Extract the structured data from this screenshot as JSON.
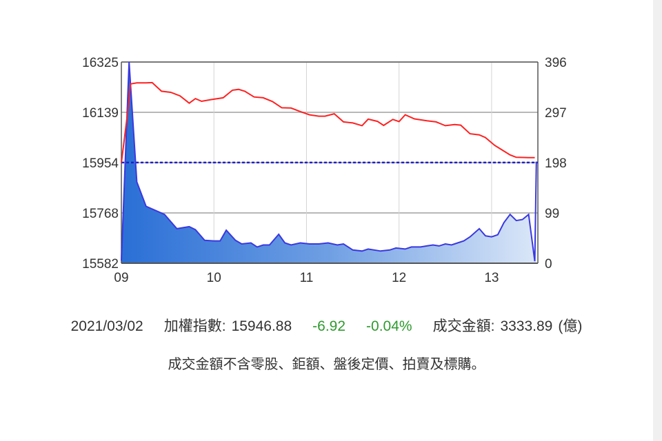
{
  "chart_data": {
    "type": "line",
    "x_ticks": [
      {
        "t": 0,
        "label": "09"
      },
      {
        "t": 60,
        "label": "10"
      },
      {
        "t": 120,
        "label": "11"
      },
      {
        "t": 180,
        "label": "12"
      },
      {
        "t": 240,
        "label": "13"
      }
    ],
    "x_range": [
      0,
      270
    ],
    "y_left": {
      "range": [
        15582,
        16325
      ],
      "ticks": [
        "16325",
        "16139",
        "15954",
        "15768",
        "15582"
      ]
    },
    "y_right": {
      "range": [
        0,
        396
      ],
      "ticks": [
        "396",
        "297",
        "198",
        "99",
        "0"
      ]
    },
    "reference_line": {
      "value": 15953.8,
      "axis": "left",
      "style": "dashed",
      "color": "#1f1fc8"
    },
    "series": [
      {
        "axis": "left",
        "type": "line",
        "color": "#ff2020",
        "points": [
          [
            0,
            15953
          ],
          [
            4,
            16134
          ],
          [
            6,
            16244
          ],
          [
            10,
            16248
          ],
          [
            16,
            16248
          ],
          [
            20,
            16249
          ],
          [
            26,
            16217
          ],
          [
            32,
            16213
          ],
          [
            38,
            16200
          ],
          [
            44,
            16173
          ],
          [
            48,
            16190
          ],
          [
            52,
            16180
          ],
          [
            58,
            16186
          ],
          [
            66,
            16193
          ],
          [
            72,
            16221
          ],
          [
            76,
            16224
          ],
          [
            80,
            16217
          ],
          [
            86,
            16196
          ],
          [
            92,
            16193
          ],
          [
            98,
            16179
          ],
          [
            104,
            16156
          ],
          [
            110,
            16155
          ],
          [
            116,
            16142
          ],
          [
            122,
            16130
          ],
          [
            128,
            16125
          ],
          [
            132,
            16125
          ],
          [
            138,
            16134
          ],
          [
            144,
            16104
          ],
          [
            150,
            16100
          ],
          [
            156,
            16090
          ],
          [
            160,
            16114
          ],
          [
            166,
            16106
          ],
          [
            170,
            16091
          ],
          [
            176,
            16113
          ],
          [
            180,
            16105
          ],
          [
            184,
            16130
          ],
          [
            190,
            16115
          ],
          [
            198,
            16108
          ],
          [
            204,
            16104
          ],
          [
            210,
            16090
          ],
          [
            216,
            16094
          ],
          [
            220,
            16092
          ],
          [
            226,
            16060
          ],
          [
            232,
            16056
          ],
          [
            236,
            16046
          ],
          [
            242,
            16017
          ],
          [
            246,
            16003
          ],
          [
            252,
            15982
          ],
          [
            256,
            15973
          ],
          [
            264,
            15972
          ],
          [
            268,
            15972
          ]
        ]
      },
      {
        "axis": "right",
        "type": "area",
        "color": "#3a38e0",
        "points": [
          [
            0,
            5
          ],
          [
            5,
            396
          ],
          [
            10,
            160
          ],
          [
            16,
            112
          ],
          [
            22,
            104
          ],
          [
            28,
            96
          ],
          [
            36,
            68
          ],
          [
            40,
            70
          ],
          [
            44,
            72
          ],
          [
            48,
            66
          ],
          [
            54,
            45
          ],
          [
            60,
            44
          ],
          [
            64,
            44
          ],
          [
            68,
            65
          ],
          [
            74,
            45
          ],
          [
            78,
            38
          ],
          [
            84,
            40
          ],
          [
            88,
            32
          ],
          [
            92,
            36
          ],
          [
            96,
            36
          ],
          [
            102,
            57
          ],
          [
            106,
            40
          ],
          [
            110,
            36
          ],
          [
            116,
            40
          ],
          [
            122,
            38
          ],
          [
            128,
            38
          ],
          [
            134,
            40
          ],
          [
            140,
            36
          ],
          [
            144,
            38
          ],
          [
            150,
            26
          ],
          [
            156,
            24
          ],
          [
            160,
            28
          ],
          [
            168,
            24
          ],
          [
            174,
            26
          ],
          [
            178,
            30
          ],
          [
            184,
            28
          ],
          [
            188,
            32
          ],
          [
            194,
            32
          ],
          [
            198,
            34
          ],
          [
            202,
            36
          ],
          [
            206,
            34
          ],
          [
            210,
            38
          ],
          [
            214,
            36
          ],
          [
            218,
            40
          ],
          [
            222,
            44
          ],
          [
            226,
            52
          ],
          [
            232,
            68
          ],
          [
            236,
            54
          ],
          [
            240,
            52
          ],
          [
            244,
            56
          ],
          [
            248,
            80
          ],
          [
            252,
            96
          ],
          [
            256,
            84
          ],
          [
            260,
            86
          ],
          [
            264,
            96
          ],
          [
            268,
            4
          ],
          [
            269,
            200
          ]
        ]
      }
    ]
  },
  "summary": {
    "date": "2021/03/02",
    "index_label": "加權指數:",
    "index_value": "15946.88",
    "change": "-6.92",
    "change_pct": "-0.04%",
    "turnover_label": "成交金額:",
    "turnover_value": "3333.89",
    "turnover_unit": "(億)"
  },
  "note": "成交金額不含零股、鉅額、盤後定價、拍賣及標購。",
  "colors": {
    "index_line": "#ff2020",
    "volume_line": "#3a38e0",
    "change_text": "#2e9a2e"
  }
}
